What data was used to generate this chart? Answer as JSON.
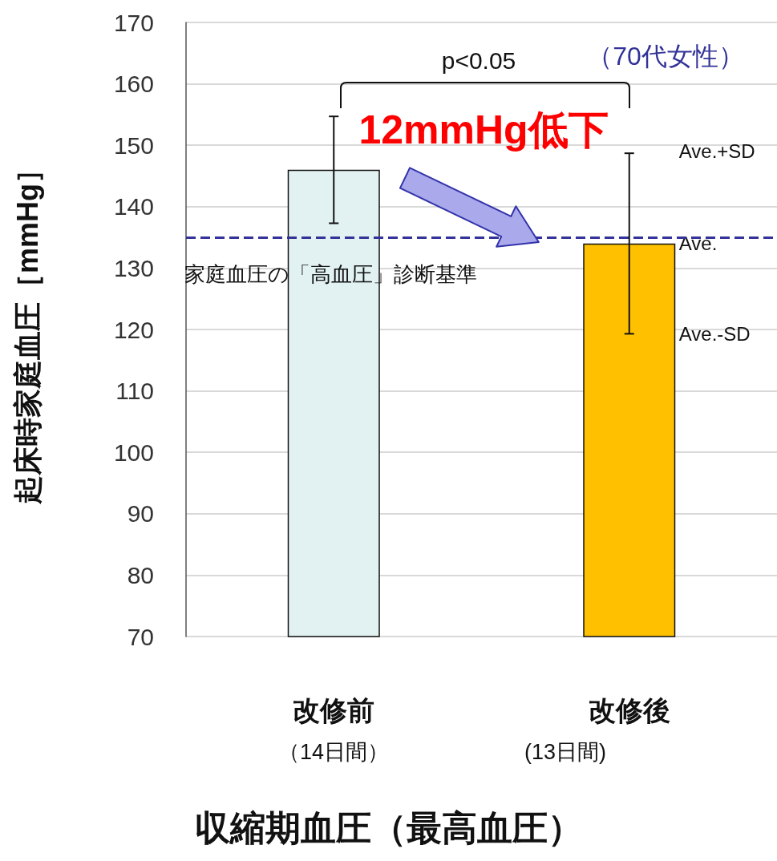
{
  "chart_data": {
    "type": "bar",
    "ylabel": "起床時家庭血圧［mmHg］",
    "xlabel": "収縮期血圧（最高血圧）",
    "categories": [
      "改修前",
      "改修後"
    ],
    "values": [
      146,
      134
    ],
    "errors": [
      8.7,
      14.7
    ],
    "colors": [
      "#e2f2f2",
      "#ffc000"
    ],
    "ylim": [
      70,
      170
    ],
    "yticks": [
      70,
      80,
      90,
      100,
      110,
      120,
      130,
      140,
      150,
      160,
      170
    ],
    "grid": "y",
    "ref_lines": [
      {
        "axis": "y",
        "value": 135,
        "label": "家庭血圧の「高血圧」診断基準",
        "color": "#333399",
        "line_style": "dashed"
      }
    ],
    "annotations": [
      "p<0.05",
      "（70代女性）",
      "12mmHg低下",
      "（14日間）",
      "(13日間)",
      {
        "text": "Ave.+SD",
        "x": "改修後",
        "y": 149
      },
      {
        "text": "Ave.",
        "x": "改修後",
        "y": 134
      },
      {
        "text": "Ave.-SD",
        "x": "改修後",
        "y": 119.3
      }
    ]
  }
}
